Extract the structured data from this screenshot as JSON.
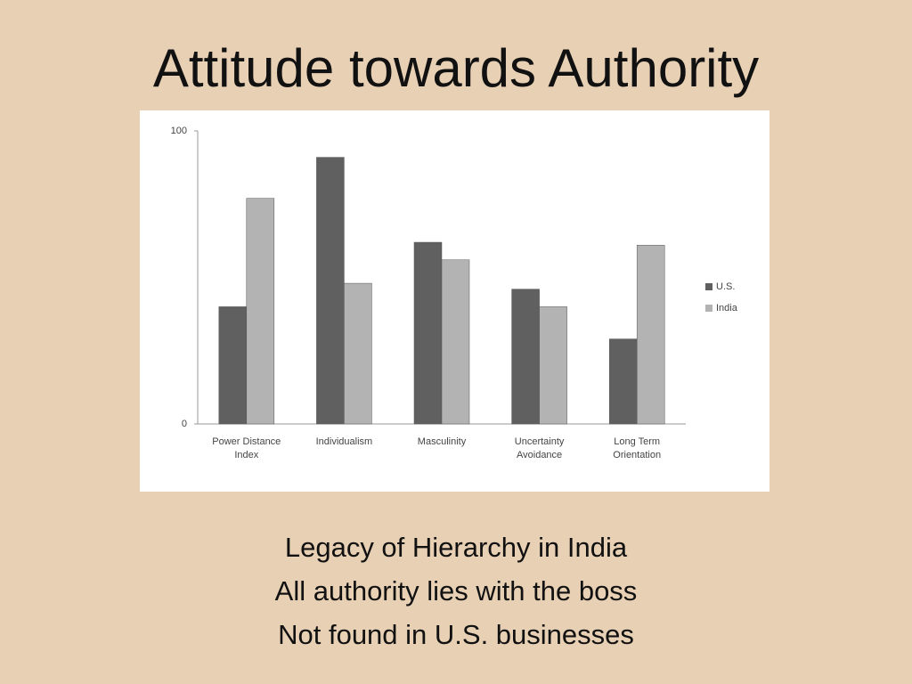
{
  "slide_title": "Attitude towards Authority",
  "chart_data": {
    "type": "bar",
    "categories": [
      "Power Distance Index",
      "Individualism",
      "Masculinity",
      "Uncertainty Avoidance",
      "Long Term Orientation"
    ],
    "series": [
      {
        "name": "U.S.",
        "color": "#606060",
        "values": [
          40,
          91,
          62,
          46,
          29
        ]
      },
      {
        "name": "India",
        "color": "#b3b3b3",
        "values": [
          77,
          48,
          56,
          40,
          61
        ]
      }
    ],
    "ylim": [
      0,
      100
    ],
    "yticks": [
      0,
      100
    ],
    "grid": false,
    "legend": "right"
  },
  "bullets": [
    "Legacy of Hierarchy in India",
    "All authority lies with the boss",
    "Not found in U.S. businesses"
  ]
}
